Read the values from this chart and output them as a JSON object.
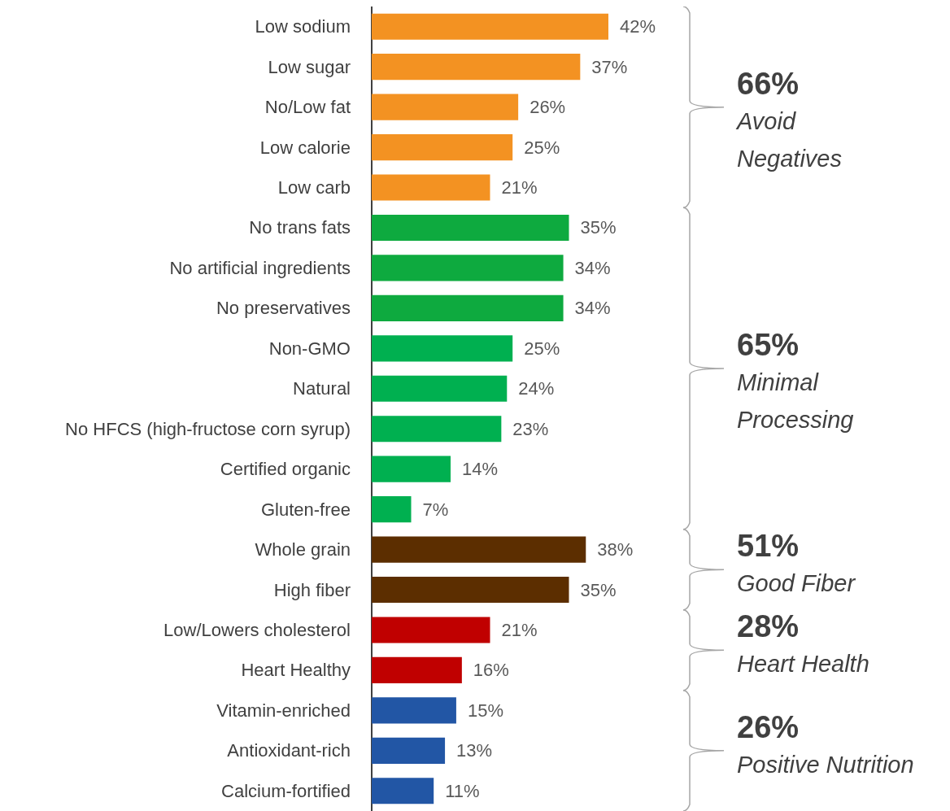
{
  "chart_data": {
    "type": "bar",
    "orientation": "horizontal",
    "tick_labels": "y",
    "grid": false,
    "categories": [
      "Low sodium",
      "Low sugar",
      "No/Low fat",
      "Low calorie",
      "Low carb",
      "No trans fats",
      "No artificial ingredients",
      "No preservatives",
      "Non-GMO",
      "Natural",
      "No HFCS (high-fructose corn syrup)",
      "Certified organic",
      "Gluten-free",
      "Whole grain",
      "High fiber",
      "Low/Lowers cholesterol",
      "Heart Healthy",
      "Vitamin-enriched",
      "Antioxidant-rich",
      "Calcium-fortified"
    ],
    "values": [
      42,
      37,
      26,
      25,
      21,
      35,
      34,
      34,
      25,
      24,
      23,
      14,
      7,
      38,
      35,
      21,
      16,
      15,
      13,
      11
    ],
    "value_labels": [
      "42%",
      "37%",
      "26%",
      "25%",
      "21%",
      "35%",
      "34%",
      "34%",
      "25%",
      "24%",
      "23%",
      "14%",
      "7%",
      "38%",
      "35%",
      "21%",
      "16%",
      "15%",
      "13%",
      "11%"
    ],
    "colors": [
      "#f39222",
      "#f39222",
      "#f39222",
      "#f39222",
      "#f39222",
      "#0eaa3f",
      "#0eaa3f",
      "#0eaa3f",
      "#00b050",
      "#00b050",
      "#00b050",
      "#00b050",
      "#00b050",
      "#5c2e00",
      "#5c2e00",
      "#c00000",
      "#c00000",
      "#2256a5",
      "#2256a5",
      "#2256a5"
    ],
    "annotations": [
      "66%\nAvoid\nNegatives",
      "65%\nMinimal\nProcessing",
      "51%\nGood Fiber",
      "28%\nHeart Health",
      "26%\nPositive Nutrition"
    ]
  }
}
